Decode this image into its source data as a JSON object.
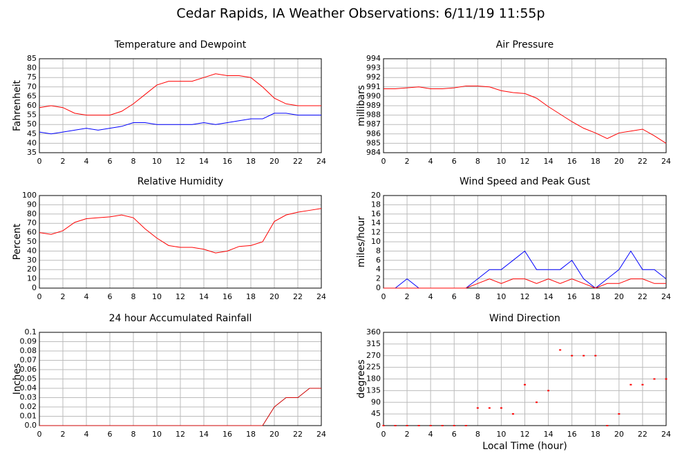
{
  "title": "Cedar Rapids, IA Weather Observations: 6/11/19 11:55p",
  "chart_data": [
    {
      "type": "line",
      "title": "Temperature and Dewpoint",
      "ylabel": "Fahrenheit",
      "x": [
        0,
        1,
        2,
        3,
        4,
        5,
        6,
        7,
        8,
        9,
        10,
        11,
        12,
        13,
        14,
        15,
        16,
        17,
        18,
        19,
        20,
        21,
        22,
        23,
        24
      ],
      "series": [
        {
          "color": "#ff0000",
          "values": [
            59,
            60,
            59,
            56,
            55,
            55,
            55,
            57,
            61,
            66,
            71,
            73,
            73,
            73,
            75,
            77,
            76,
            76,
            75,
            70,
            64,
            61,
            60,
            60,
            60
          ]
        },
        {
          "color": "#0000ff",
          "values": [
            46,
            45,
            46,
            47,
            48,
            47,
            48,
            49,
            51,
            51,
            50,
            50,
            50,
            50,
            51,
            50,
            51,
            52,
            53,
            53,
            56,
            56,
            55,
            55,
            55
          ]
        }
      ],
      "xlim": [
        0,
        24
      ],
      "xticks": [
        0,
        2,
        4,
        6,
        8,
        10,
        12,
        14,
        16,
        18,
        20,
        22,
        24
      ],
      "ylim": [
        35,
        85
      ],
      "yticks": [
        35,
        40,
        45,
        50,
        55,
        60,
        65,
        70,
        75,
        80,
        85
      ],
      "grid": true
    },
    {
      "type": "line",
      "title": "Air Pressure",
      "ylabel": "millibars",
      "x": [
        0,
        1,
        2,
        3,
        4,
        5,
        6,
        7,
        8,
        9,
        10,
        11,
        12,
        13,
        14,
        15,
        16,
        17,
        18,
        19,
        20,
        21,
        22,
        23,
        24
      ],
      "series": [
        {
          "color": "#ff0000",
          "values": [
            990.8,
            990.8,
            990.9,
            991,
            990.8,
            990.8,
            990.9,
            991.1,
            991.1,
            991,
            990.6,
            990.4,
            990.3,
            989.8,
            988.9,
            988.1,
            987.3,
            986.6,
            986.1,
            985.5,
            986.1,
            986.3,
            986.5,
            985.8,
            985.0
          ]
        }
      ],
      "xlim": [
        0,
        24
      ],
      "xticks": [
        0,
        2,
        4,
        6,
        8,
        10,
        12,
        14,
        16,
        18,
        20,
        22,
        24
      ],
      "ylim": [
        984,
        994
      ],
      "yticks": [
        984,
        985,
        986,
        987,
        988,
        989,
        990,
        991,
        992,
        993,
        994
      ],
      "grid": true
    },
    {
      "type": "line",
      "title": "Relative Humidity",
      "ylabel": "Percent",
      "x": [
        0,
        1,
        2,
        3,
        4,
        5,
        6,
        7,
        8,
        9,
        10,
        11,
        12,
        13,
        14,
        15,
        16,
        17,
        18,
        19,
        20,
        21,
        22,
        23,
        24
      ],
      "series": [
        {
          "color": "#ff0000",
          "values": [
            60,
            58,
            62,
            71,
            75,
            76,
            77,
            79,
            76,
            64,
            54,
            46,
            44,
            44,
            42,
            38,
            40,
            45,
            46,
            50,
            72,
            79,
            82,
            84,
            86
          ]
        }
      ],
      "xlim": [
        0,
        24
      ],
      "xticks": [
        0,
        2,
        4,
        6,
        8,
        10,
        12,
        14,
        16,
        18,
        20,
        22,
        24
      ],
      "ylim": [
        0,
        100
      ],
      "yticks": [
        0,
        10,
        20,
        30,
        40,
        50,
        60,
        70,
        80,
        90,
        100
      ],
      "grid": true
    },
    {
      "type": "line",
      "title": "Wind Speed and Peak Gust",
      "ylabel": "miles/hour",
      "x": [
        0,
        1,
        2,
        3,
        4,
        5,
        6,
        7,
        8,
        9,
        10,
        11,
        12,
        13,
        14,
        15,
        16,
        17,
        18,
        19,
        20,
        21,
        22,
        23,
        24
      ],
      "series": [
        {
          "color": "#0000ff",
          "values": [
            0,
            0,
            2,
            0,
            0,
            0,
            0,
            0,
            2,
            4,
            4,
            6,
            8,
            4,
            4,
            4,
            6,
            2,
            0,
            2,
            4,
            8,
            4,
            4,
            2
          ]
        },
        {
          "color": "#ff0000",
          "values": [
            0,
            0,
            0,
            0,
            0,
            0,
            0,
            0,
            1,
            2,
            1,
            2,
            2,
            1,
            2,
            1,
            2,
            1,
            0,
            1,
            1,
            2,
            2,
            1,
            1
          ]
        }
      ],
      "xlim": [
        0,
        24
      ],
      "xticks": [
        0,
        2,
        4,
        6,
        8,
        10,
        12,
        14,
        16,
        18,
        20,
        22,
        24
      ],
      "ylim": [
        0,
        20
      ],
      "yticks": [
        0,
        2,
        4,
        6,
        8,
        10,
        12,
        14,
        16,
        18,
        20
      ],
      "grid": true
    },
    {
      "type": "line",
      "title": "24 hour Accumulated Rainfall",
      "ylabel": "Inches",
      "x": [
        0,
        1,
        2,
        3,
        4,
        5,
        6,
        7,
        8,
        9,
        10,
        11,
        12,
        13,
        14,
        15,
        16,
        17,
        18,
        19,
        20,
        21,
        22,
        23,
        24
      ],
      "series": [
        {
          "color": "#cc0000",
          "values": [
            0,
            0,
            0,
            0,
            0,
            0,
            0,
            0,
            0,
            0,
            0,
            0,
            0,
            0,
            0,
            0,
            0,
            0,
            0,
            0,
            0.02,
            0.03,
            0.03,
            0.04,
            0.04
          ]
        }
      ],
      "xlim": [
        0,
        24
      ],
      "xticks": [
        0,
        2,
        4,
        6,
        8,
        10,
        12,
        14,
        16,
        18,
        20,
        22,
        24
      ],
      "ylim": [
        0,
        0.1
      ],
      "yticks": [
        {
          "value": 0,
          "label": "0.0"
        },
        0.01,
        0.02,
        0.03,
        0.04,
        0.05,
        0.06,
        0.07,
        0.08,
        0.09,
        0.1
      ],
      "grid": true
    },
    {
      "type": "scatter",
      "title": "Wind Direction",
      "ylabel": "degrees",
      "xlabel": "Local Time (hour)",
      "x": [
        0,
        1,
        2,
        3,
        4,
        5,
        6,
        7,
        8,
        9,
        10,
        11,
        12,
        13,
        14,
        15,
        16,
        17,
        18,
        19,
        20,
        21,
        22,
        23,
        24
      ],
      "series": [
        {
          "color": "#ff0000",
          "values": [
            0,
            0,
            0,
            0,
            0,
            0,
            0,
            0,
            68,
            68,
            68,
            45,
            158,
            90,
            135,
            292,
            270,
            270,
            270,
            0,
            45,
            158,
            158,
            180,
            180
          ]
        }
      ],
      "xlim": [
        0,
        24
      ],
      "xticks": [
        0,
        2,
        4,
        6,
        8,
        10,
        12,
        14,
        16,
        18,
        20,
        22,
        24
      ],
      "ylim": [
        0,
        360
      ],
      "yticks": [
        0,
        45,
        90,
        135,
        180,
        225,
        270,
        315,
        360
      ],
      "grid": true
    }
  ]
}
